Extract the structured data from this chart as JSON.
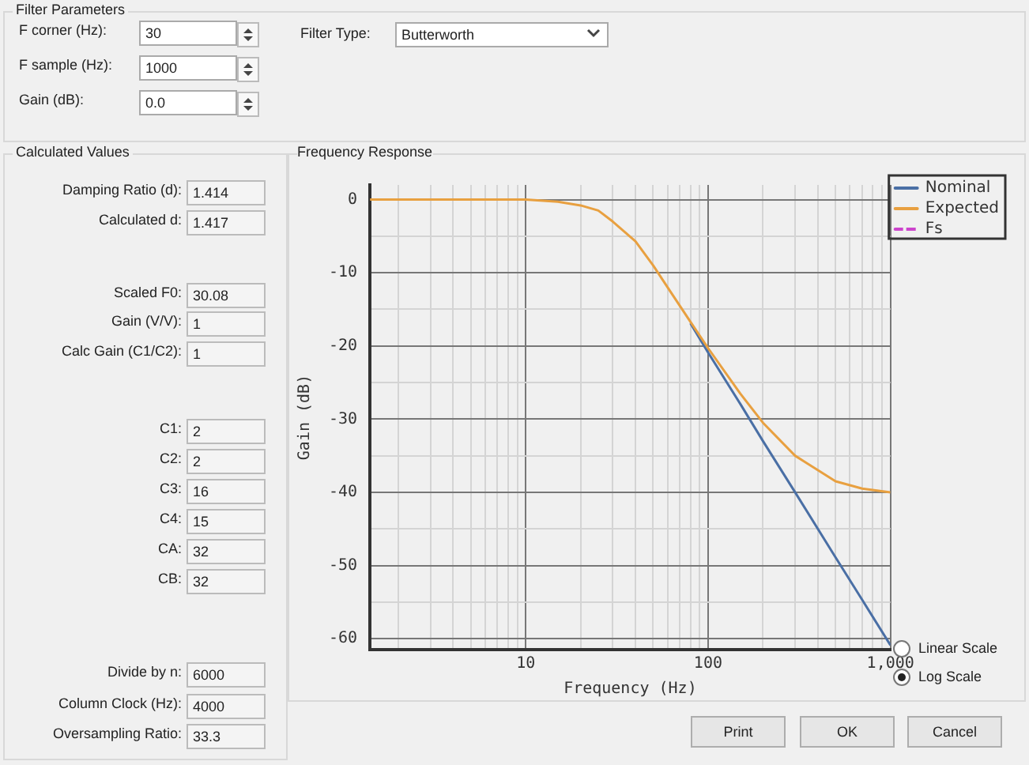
{
  "chart_data": {
    "type": "line",
    "title": "Frequency Response",
    "xlabel": "Frequency (Hz)",
    "ylabel": "Gain (dB)",
    "log": "x",
    "grid": true,
    "legend": "top right",
    "marker": "none",
    "xlim": [
      1.4,
      1000
    ],
    "ylim": [
      -61.5,
      2
    ],
    "xticks": [
      {
        "value": 2,
        "label": null
      },
      {
        "value": 3,
        "label": null
      },
      {
        "value": 4,
        "label": null
      },
      {
        "value": 5,
        "label": null
      },
      {
        "value": 6,
        "label": null
      },
      {
        "value": 7,
        "label": null
      },
      {
        "value": 8,
        "label": null
      },
      {
        "value": 9,
        "label": null
      },
      10,
      {
        "value": 20,
        "label": null
      },
      {
        "value": 30,
        "label": null
      },
      {
        "value": 40,
        "label": null
      },
      {
        "value": 50,
        "label": null
      },
      {
        "value": 60,
        "label": null
      },
      {
        "value": 70,
        "label": null
      },
      {
        "value": 80,
        "label": null
      },
      {
        "value": 90,
        "label": null
      },
      100,
      {
        "value": 200,
        "label": null
      },
      {
        "value": 300,
        "label": null
      },
      {
        "value": 400,
        "label": null
      },
      {
        "value": 500,
        "label": null
      },
      {
        "value": 600,
        "label": null
      },
      {
        "value": 700,
        "label": null
      },
      {
        "value": 800,
        "label": null
      },
      {
        "value": 900,
        "label": null
      },
      {
        "value": 1000,
        "label": "1,000"
      }
    ],
    "yticks": [
      -60,
      {
        "value": -55,
        "label": null
      },
      -50,
      {
        "value": -45,
        "label": null
      },
      -40,
      {
        "value": -35,
        "label": null
      },
      -30,
      {
        "value": -25,
        "label": null
      },
      -20,
      {
        "value": -15,
        "label": null
      },
      -10,
      {
        "value": -5,
        "label": null
      },
      0
    ],
    "series": [
      {
        "name": "Nominal",
        "color": "#4a6fa5",
        "x": [
          80,
          100,
          150,
          200,
          300,
          500,
          700,
          1000
        ],
        "values": [
          -16.9,
          -20.9,
          -27.9,
          -33,
          -40,
          -48.9,
          -54.7,
          -60.9
        ]
      },
      {
        "name": "Expected",
        "color": "#e8a040",
        "x": [
          1.4,
          5,
          10,
          15,
          20,
          25,
          30,
          40,
          50,
          60,
          80,
          100,
          150,
          200,
          300,
          500,
          700,
          1000
        ],
        "values": [
          0,
          0,
          0,
          -0.3,
          -0.8,
          -1.5,
          -3,
          -5.7,
          -9,
          -12,
          -16.7,
          -20.3,
          -26.5,
          -30.5,
          -35,
          -38.5,
          -39.5,
          -40
        ]
      },
      {
        "name": "Fs",
        "color": "#cc44cc",
        "line_style": "dashed"
      }
    ],
    "annotations": [
      "Filter Parameters",
      "F corner (Hz):",
      "30",
      "F sample (Hz):",
      "1000",
      "Gain (dB):",
      "0.0",
      "Filter Type:",
      "Butterworth",
      "Calculated Values",
      "Damping Ratio (d):",
      "1.414",
      "Calculated d:",
      "1.417",
      "Scaled F0:",
      "30.08",
      "Gain (V/V):",
      "1",
      "Calc Gain (C1/C2):",
      "1",
      "C1:",
      "2",
      "C2:",
      "2",
      "C3:",
      "16",
      "C4:",
      "15",
      "CA:",
      "32",
      "CB:",
      "32",
      "Divide by n:",
      "6000",
      "Column Clock (Hz):",
      "4000",
      "Oversampling Ratio:",
      "33.3",
      "Linear Scale",
      "Log Scale",
      "Print",
      "OK",
      "Cancel"
    ]
  }
}
